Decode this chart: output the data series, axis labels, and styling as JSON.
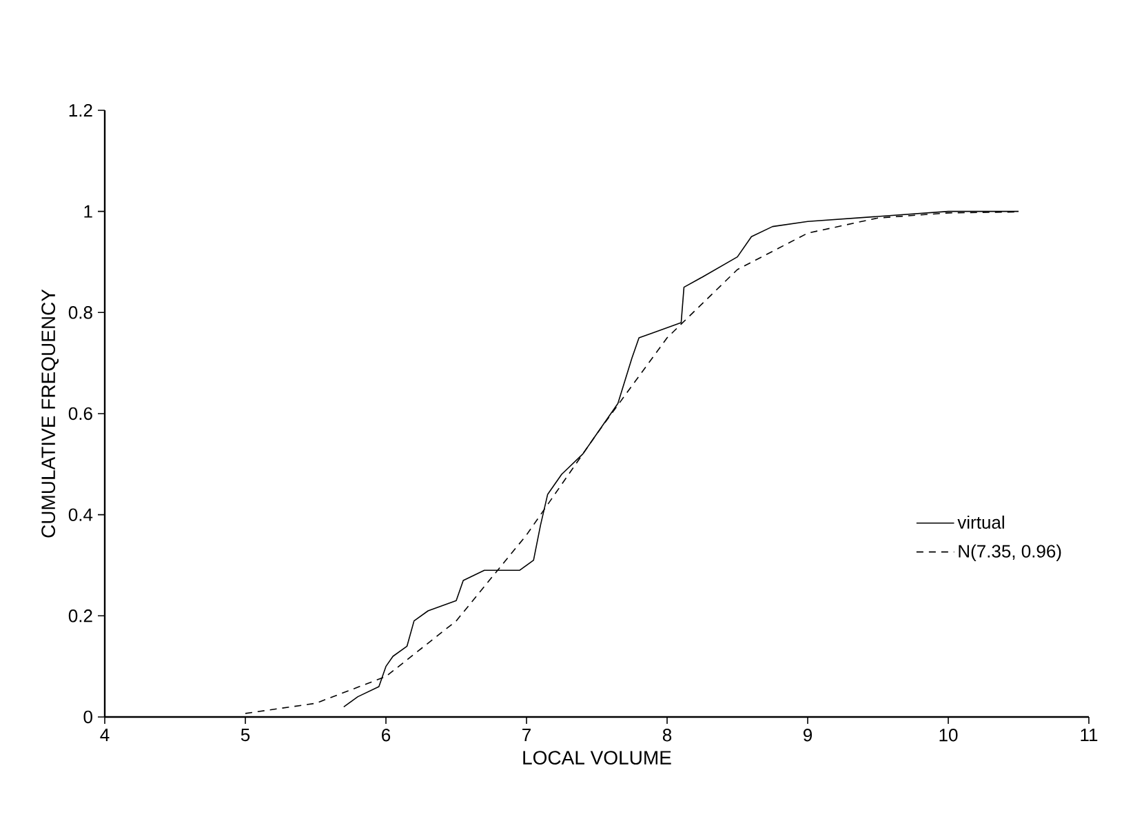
{
  "chart_data": {
    "type": "line",
    "xlabel": "LOCAL   VOLUME",
    "ylabel": "CUMULATIVE FREQUENCY",
    "xlim": [
      4,
      11
    ],
    "xticks": [
      4,
      5,
      6,
      7,
      8,
      9,
      10,
      11
    ],
    "ylim": [
      0,
      1.2
    ],
    "yticks": [
      0,
      0.2,
      0.4,
      0.6,
      0.8,
      1,
      1.2
    ],
    "grid": false,
    "legend": "bottom right",
    "marker": "none",
    "series": [
      {
        "name": "virtual",
        "color": "#000000",
        "line_style": "solid",
        "x": [
          5.7,
          5.8,
          5.95,
          6.0,
          6.05,
          6.15,
          6.2,
          6.3,
          6.5,
          6.55,
          6.7,
          6.95,
          7.05,
          7.1,
          7.15,
          7.25,
          7.4,
          7.5,
          7.65,
          7.75,
          7.8,
          7.9,
          8.1,
          8.12,
          8.25,
          8.5,
          8.6,
          8.75,
          9.0,
          9.5,
          10.0,
          10.5
        ],
        "values": [
          0.02,
          0.04,
          0.06,
          0.1,
          0.12,
          0.14,
          0.19,
          0.21,
          0.23,
          0.27,
          0.29,
          0.29,
          0.31,
          0.38,
          0.44,
          0.48,
          0.52,
          0.56,
          0.62,
          0.71,
          0.75,
          0.76,
          0.78,
          0.85,
          0.87,
          0.91,
          0.95,
          0.97,
          0.98,
          0.99,
          1.0,
          1.0
        ]
      },
      {
        "name": "N(7.35, 0.96)",
        "color": "#000000",
        "line_style": "dashed",
        "x": [
          5.0,
          5.5,
          6.0,
          6.5,
          7.0,
          7.35,
          7.5,
          8.0,
          8.5,
          9.0,
          9.5,
          10.0,
          10.5
        ],
        "values": [
          0.007,
          0.027,
          0.08,
          0.19,
          0.36,
          0.5,
          0.56,
          0.75,
          0.885,
          0.957,
          0.987,
          0.997,
          0.999
        ]
      }
    ]
  }
}
